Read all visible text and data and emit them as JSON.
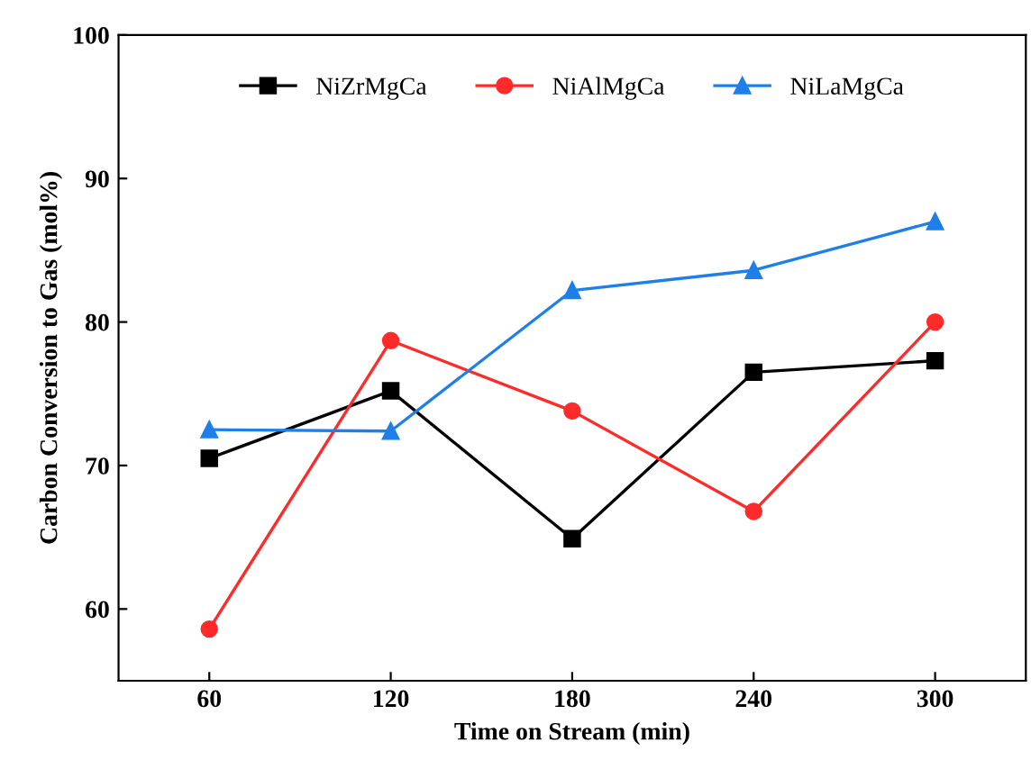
{
  "chart_data": {
    "type": "line",
    "xlabel": "Time on Stream (min)",
    "ylabel": "Carbon Conversion to Gas (mol%)",
    "x": [
      60,
      120,
      180,
      240,
      300
    ],
    "series": [
      {
        "name": "NiZrMgCa",
        "color": "#000000",
        "marker": "square",
        "values": [
          70.5,
          75.2,
          64.9,
          76.5,
          77.3
        ]
      },
      {
        "name": "NiAlMgCa",
        "color": "#ff2a2a",
        "marker": "circle",
        "values": [
          58.6,
          78.7,
          73.8,
          66.8,
          80.0
        ]
      },
      {
        "name": "NiLaMgCa",
        "color": "#1f7fe8",
        "marker": "triangle",
        "values": [
          72.5,
          72.4,
          82.2,
          83.6,
          87.0
        ]
      }
    ],
    "xlim": [
      30,
      330
    ],
    "xticks": [
      60,
      120,
      180,
      240,
      300
    ],
    "ylim": [
      55,
      100
    ],
    "yticks": [
      60,
      70,
      80,
      90,
      100
    ],
    "grid": false,
    "legend": "top",
    "line_style": "solid"
  }
}
